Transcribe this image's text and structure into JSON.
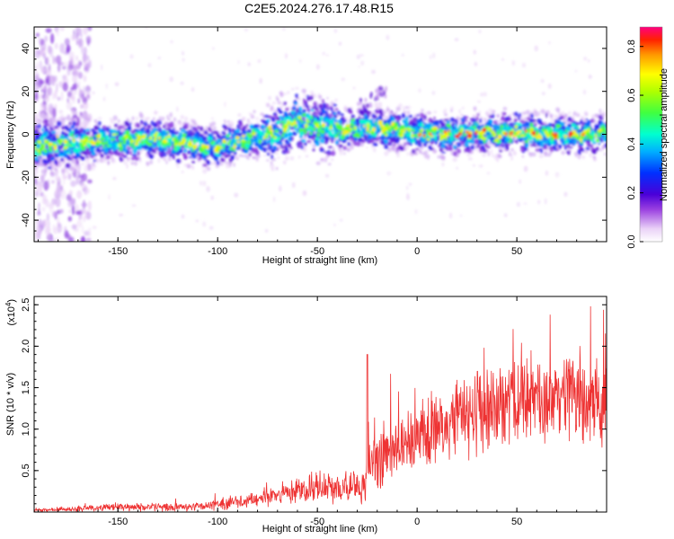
{
  "title": "C2E5.2024.276.17.48.R15",
  "chart_data": [
    {
      "type": "heatmap",
      "xlabel": "Height of straight line (km)",
      "ylabel": "Frequency (Hz)",
      "xlim": [
        -192,
        95
      ],
      "ylim": [
        -50,
        50
      ],
      "xticks": [
        -150,
        -100,
        -50,
        0,
        50
      ],
      "yticks": [
        -40,
        -20,
        0,
        20,
        40
      ],
      "colorbar": {
        "label": "Normalized spectral amplitude",
        "range": [
          0.0,
          0.88
        ],
        "ticks": [
          0.0,
          0.2,
          0.4,
          0.6,
          0.8
        ],
        "tick_labels": [
          "0.0",
          "0.2",
          "0.4",
          "0.6",
          "0.8"
        ]
      },
      "ridge": {
        "x": [
          -192,
          -170,
          -150,
          -130,
          -110,
          -100,
          -90,
          -80,
          -70,
          -65,
          -60,
          -55,
          -50,
          -45,
          -40,
          -30,
          -20,
          -10,
          0,
          10,
          20,
          30,
          40,
          50,
          60,
          70,
          80,
          95
        ],
        "frequency": [
          -5,
          -4,
          -3,
          -2,
          -5,
          -6,
          -3,
          -1,
          1,
          4,
          6,
          5,
          3,
          3,
          2,
          3,
          3,
          2,
          1,
          0,
          0,
          1,
          0,
          1,
          0,
          0,
          0,
          0
        ]
      }
    },
    {
      "type": "line",
      "xlabel": "Height of straight line (km)",
      "ylabel": "SNR (10 * v/v)",
      "ylabel_multiplier": "(x10",
      "ylabel_exponent": "4",
      "ylabel_multiplier_close": ")",
      "xlim": [
        -192,
        95
      ],
      "ylim": [
        0,
        2.6
      ],
      "xticks": [
        -150,
        -100,
        -50,
        0,
        50
      ],
      "yticks": [
        0.5,
        1.0,
        1.5,
        2.0,
        2.5
      ],
      "ytick_labels": [
        "0.5",
        "1.0",
        "1.5",
        "2.0",
        "2.5"
      ],
      "color": "#ee3333",
      "envelope": {
        "x": [
          -192,
          -170,
          -150,
          -130,
          -110,
          -100,
          -90,
          -80,
          -70,
          -60,
          -50,
          -40,
          -30,
          -26,
          -25,
          -20,
          -10,
          0,
          10,
          20,
          30,
          40,
          50,
          60,
          70,
          80,
          95
        ],
        "mean": [
          0.02,
          0.04,
          0.06,
          0.06,
          0.07,
          0.09,
          0.12,
          0.15,
          0.2,
          0.25,
          0.28,
          0.3,
          0.33,
          0.35,
          0.5,
          0.6,
          0.75,
          0.9,
          1.0,
          1.1,
          1.2,
          1.3,
          1.35,
          1.38,
          1.4,
          1.4,
          1.35
        ],
        "spread": [
          0.02,
          0.03,
          0.04,
          0.05,
          0.05,
          0.06,
          0.07,
          0.09,
          0.12,
          0.14,
          0.16,
          0.18,
          0.2,
          0.25,
          0.35,
          0.4,
          0.4,
          0.45,
          0.45,
          0.45,
          0.5,
          0.5,
          0.5,
          0.5,
          0.55,
          0.55,
          0.5
        ]
      },
      "peak": {
        "x": -25,
        "y": 1.9
      }
    }
  ]
}
